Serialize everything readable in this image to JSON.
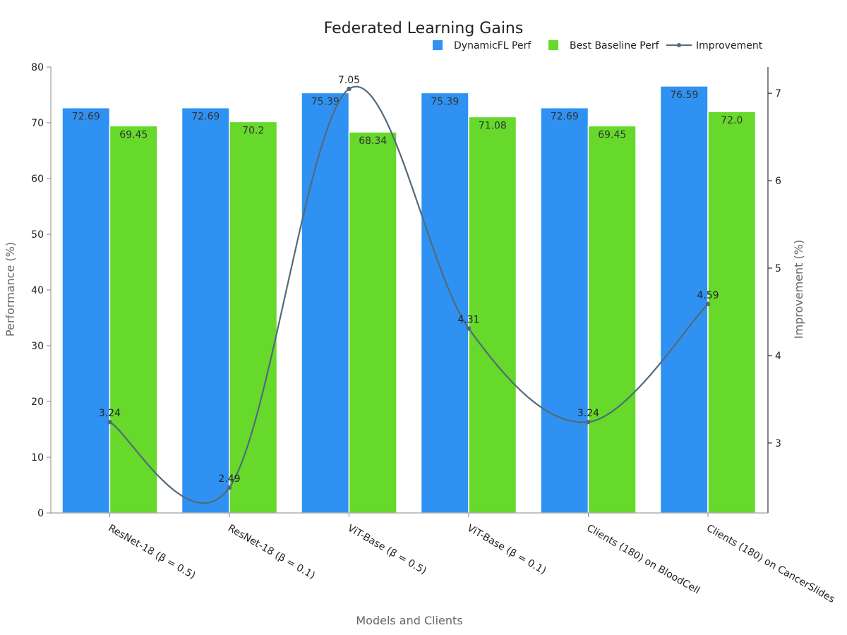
{
  "chart_data": {
    "type": "bar",
    "title": "Federated Learning Gains",
    "categories": [
      "ResNet-18 (β = 0.5)",
      "ResNet-18 (β = 0.1)",
      "ViT-Base (β = 0.5)",
      "ViT-Base (β = 0.1)",
      "Clients (180) on BloodCell",
      "Clients (180) on CancerSlides"
    ],
    "series": [
      {
        "name": "DynamicFL Perf",
        "values": [
          72.69,
          72.69,
          75.39,
          75.39,
          72.69,
          76.59
        ],
        "labels": [
          "72.69",
          "72.69",
          "75.39",
          "75.39",
          "72.69",
          "76.59"
        ],
        "color": "#2f92f3"
      },
      {
        "name": "Best Baseline Perf",
        "values": [
          69.45,
          70.2,
          68.34,
          71.08,
          69.45,
          72.0
        ],
        "labels": [
          "69.45",
          "70.2",
          "68.34",
          "71.08",
          "69.45",
          "72.0"
        ],
        "color": "#66d92b"
      }
    ],
    "line": {
      "name": "Improvement",
      "values": [
        3.24,
        2.49,
        7.05,
        4.31,
        3.24,
        4.59
      ],
      "labels": [
        "3.24",
        "2.49",
        "7.05",
        "4.31",
        "3.24",
        "4.59"
      ],
      "color": "#526a7a",
      "axis": "right"
    },
    "xlabel": "Models and Clients",
    "ylabel": "Performance (%)",
    "y2label": "Improvement (%)",
    "ylim": [
      0,
      80
    ],
    "y2lim": [
      2.2,
      7.3
    ],
    "yticks": [
      "0",
      "10",
      "20",
      "30",
      "40",
      "50",
      "60",
      "70",
      "80"
    ],
    "y2ticks": [
      "3",
      "4",
      "5",
      "6",
      "7"
    ],
    "grid": false,
    "legend": "top-right"
  }
}
